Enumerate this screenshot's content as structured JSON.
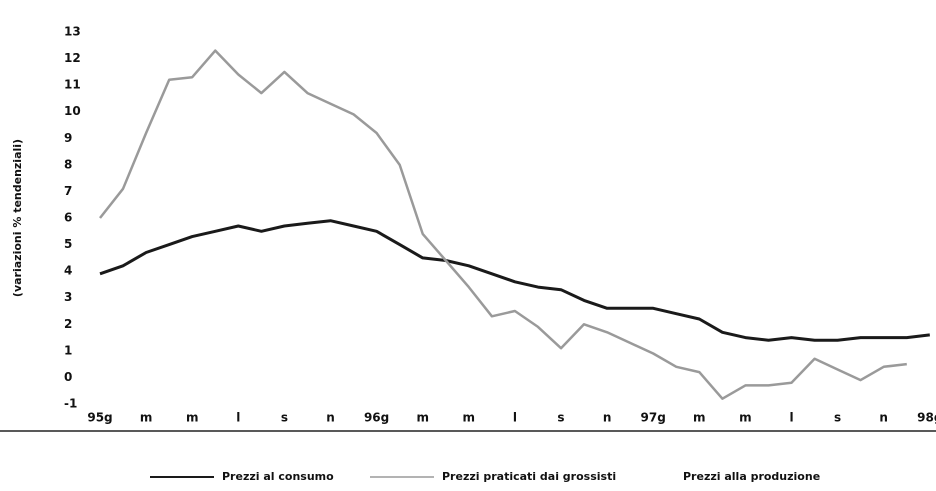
{
  "chart_data": {
    "type": "line",
    "y_label": "(variazioni % tendenziali)",
    "categories": [
      "95g",
      null,
      "m",
      null,
      "m",
      null,
      "l",
      null,
      "s",
      null,
      "n",
      null,
      "96g",
      null,
      "m",
      null,
      "m",
      null,
      "l",
      null,
      "s",
      null,
      "n",
      null,
      "97g",
      null,
      "m",
      null,
      "m",
      null,
      "l",
      null,
      "s",
      null,
      "n",
      null,
      "98g"
    ],
    "series": [
      {
        "name": "Prezzi al consumo",
        "color": "#1a1a1a",
        "values": [
          3.9,
          4.2,
          4.7,
          5.0,
          5.3,
          5.5,
          5.7,
          5.5,
          5.7,
          5.8,
          5.9,
          5.7,
          5.5,
          5.0,
          4.5,
          4.4,
          4.2,
          3.9,
          3.6,
          3.4,
          3.3,
          2.9,
          2.6,
          2.6,
          2.6,
          2.4,
          2.2,
          1.7,
          1.5,
          1.4,
          1.5,
          1.4,
          1.4,
          1.5,
          1.5,
          1.5,
          1.6
        ]
      },
      {
        "name": "Prezzi praticati dai grossisti",
        "color": "#9a9a9a",
        "values": [
          6.0,
          7.1,
          9.2,
          11.2,
          11.3,
          12.3,
          11.4,
          10.7,
          11.5,
          10.7,
          10.3,
          9.9,
          9.2,
          8.0,
          5.4,
          4.4,
          3.4,
          2.3,
          2.5,
          1.9,
          1.1,
          2.0,
          1.7,
          1.3,
          0.9,
          0.4,
          0.2,
          -0.8,
          -0.3,
          -0.3,
          -0.2,
          0.7,
          0.3,
          -0.1,
          0.4,
          0.5,
          null
        ]
      },
      {
        "name": "Prezzi alla produzione",
        "values": [
          null,
          null,
          null,
          null,
          null,
          null,
          null,
          null,
          null,
          null,
          null,
          null,
          null,
          null,
          null,
          null,
          null,
          null,
          null,
          null,
          null,
          null,
          null,
          null,
          null,
          null,
          null,
          null,
          null,
          null,
          null,
          null,
          null,
          null,
          null,
          null,
          null
        ]
      }
    ],
    "ylim": [
      -1,
      13
    ],
    "yticks": [
      -1,
      0,
      1,
      2,
      3,
      4,
      5,
      6,
      7,
      8,
      9,
      10,
      11,
      12,
      13
    ]
  }
}
